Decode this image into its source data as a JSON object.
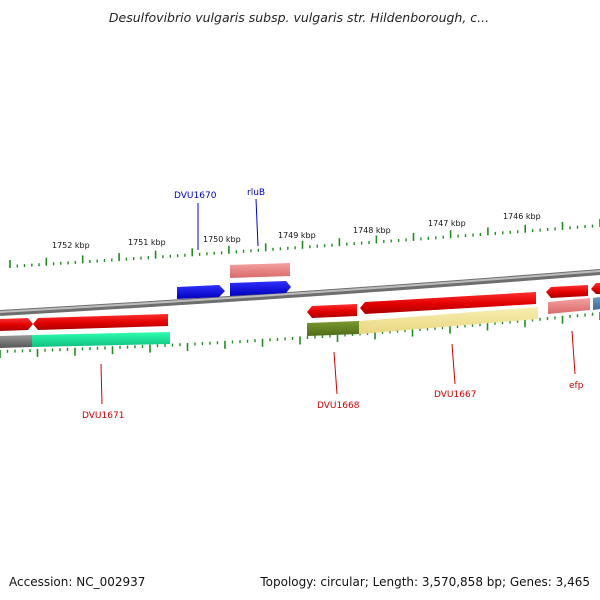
{
  "title": "Desulfovibrio vulgaris subsp. vulgaris str. Hildenborough, c...",
  "footer": {
    "accession": "Accession: NC_002937",
    "summary": "Topology: circular; Length: 3,570,858 bp; Genes: 3,465"
  },
  "scale_labels": [
    "1752 kbp",
    "1751 kbp",
    "1750 kbp",
    "1749 kbp",
    "1748 kbp",
    "1747 kbp",
    "1746 kbp"
  ],
  "gene_labels": {
    "dvu1670": "DVU1670",
    "rlub": "rluB",
    "dvu1671": "DVU1671",
    "dvu1668": "DVU1668",
    "dvu1667": "DVU1667",
    "efp": "efp"
  },
  "colors": {
    "forward_strand_label": "#0000cc",
    "reverse_strand_label": "#cc0000",
    "tick": "#228b22",
    "backbone": "#888888"
  }
}
